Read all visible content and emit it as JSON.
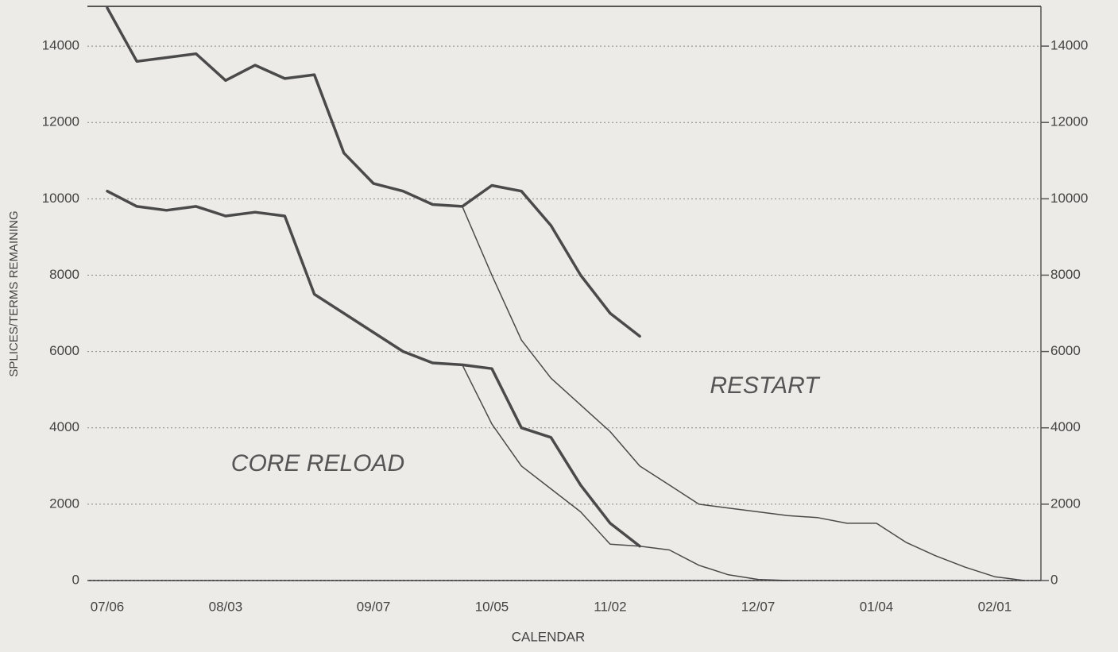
{
  "chart_data": {
    "type": "line",
    "xlabel": "CALENDAR",
    "ylabel": "SPLICES/TERMS REMAINING",
    "annotations": [
      "RESTART",
      "CORE RELOAD"
    ],
    "categories": [
      "07/06",
      null,
      null,
      null,
      "08/03",
      null,
      null,
      null,
      null,
      "09/07",
      null,
      null,
      null,
      "10/05",
      null,
      null,
      null,
      "11/02",
      null,
      null,
      null,
      null,
      "12/07",
      null,
      null,
      null,
      "01/04",
      null,
      null,
      null,
      "02/01",
      null
    ],
    "series": [
      {
        "color": "#4a4a4a",
        "width": 3.5,
        "values": [
          15000,
          13600,
          13700,
          13800,
          13100,
          13500,
          13150,
          13250,
          11200,
          10400,
          10200,
          9850,
          9800,
          10350,
          10200,
          9300,
          8000,
          7000,
          6400,
          null,
          null,
          null,
          null,
          null,
          null,
          null,
          null,
          null,
          null,
          null,
          null,
          null
        ]
      },
      {
        "color": "#4a4a4a",
        "width": 1.5,
        "values": [
          null,
          null,
          null,
          null,
          null,
          null,
          null,
          null,
          null,
          null,
          null,
          null,
          9800,
          8000,
          6300,
          5300,
          4600,
          3900,
          3000,
          2500,
          2000,
          1900,
          1800,
          1700,
          1650,
          1500,
          1500,
          1000,
          650,
          350,
          100,
          0
        ]
      },
      {
        "color": "#4a4a4a",
        "width": 3.5,
        "values": [
          10200,
          9800,
          9700,
          9800,
          9550,
          9650,
          9550,
          7500,
          7000,
          6500,
          6000,
          5700,
          5650,
          5550,
          4000,
          3750,
          2500,
          1500,
          900,
          null,
          null,
          null,
          null,
          null,
          null,
          null,
          null,
          null,
          null,
          null,
          null,
          null
        ]
      },
      {
        "color": "#4a4a4a",
        "width": 1.5,
        "values": [
          null,
          null,
          null,
          null,
          null,
          null,
          null,
          null,
          null,
          null,
          null,
          null,
          5650,
          4100,
          3000,
          2400,
          1800,
          950,
          900,
          800,
          400,
          150,
          30,
          0,
          null,
          null,
          null,
          null,
          null,
          null,
          null,
          null
        ]
      }
    ],
    "ylim": [
      0,
      15000
    ],
    "yticks": [
      0,
      2000,
      4000,
      6000,
      8000,
      10000,
      12000,
      14000
    ],
    "y2lim": [
      0,
      15000
    ],
    "y2ticks": [
      0,
      2000,
      4000,
      6000,
      8000,
      10000,
      12000,
      14000
    ],
    "grid": true
  }
}
